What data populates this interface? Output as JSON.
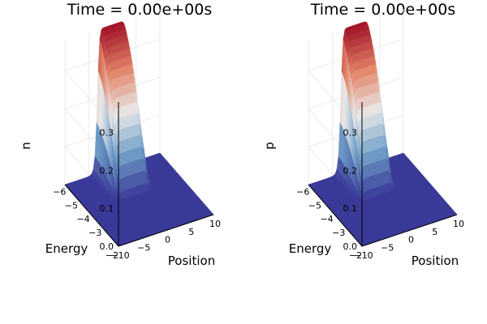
{
  "chart_data": [
    {
      "type": "surface",
      "title": "Time = 0.00e+00s",
      "xlabel": "Position",
      "ylabel": "Energy",
      "zlabel": "n",
      "x_ticks": [
        "−10",
        "−5",
        "0",
        "5",
        "10"
      ],
      "y_ticks": [
        "−2",
        "−3",
        "−4",
        "−5",
        "−6"
      ],
      "z_ticks": [
        "0.0",
        "0.1",
        "0.2",
        "0.3"
      ],
      "xlim": [
        -10,
        10
      ],
      "ylim": [
        -6.5,
        -2
      ],
      "zlim": [
        0,
        0.38
      ],
      "peak": {
        "x_center": 0,
        "x_halfwidth": 3.2,
        "z_max": 0.38
      },
      "colormap": [
        "#3a3a99",
        "#6f9ec7",
        "#e8e8e8",
        "#e3866a",
        "#a11428"
      ]
    },
    {
      "type": "surface",
      "title": "Time = 0.00e+00s",
      "xlabel": "Position",
      "ylabel": "Energy",
      "zlabel": "p",
      "x_ticks": [
        "−10",
        "−5",
        "0",
        "5",
        "10"
      ],
      "y_ticks": [
        "−2",
        "−3",
        "−4",
        "−5",
        "−6"
      ],
      "z_ticks": [
        "0.0",
        "0.1",
        "0.2",
        "0.3"
      ],
      "xlim": [
        -10,
        10
      ],
      "ylim": [
        -6.5,
        -2
      ],
      "zlim": [
        0,
        0.38
      ],
      "peak": {
        "x_center": 0,
        "x_halfwidth": 3.2,
        "z_max": 0.38
      },
      "colormap": [
        "#3a3a99",
        "#6f9ec7",
        "#e8e8e8",
        "#e3866a",
        "#a11428"
      ]
    }
  ]
}
